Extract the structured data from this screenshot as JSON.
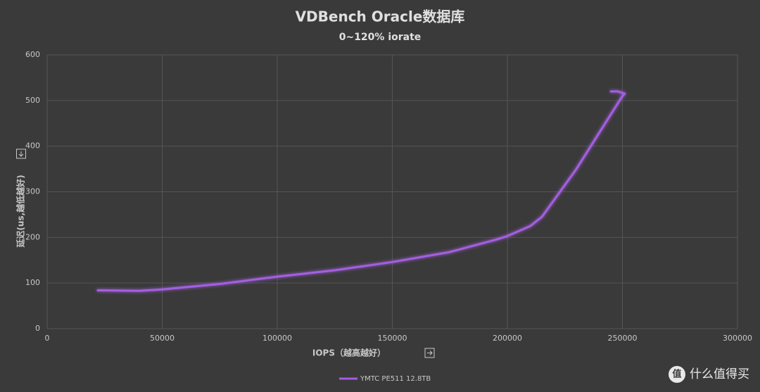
{
  "chart_data": {
    "type": "line",
    "title": "VDBench Oracle数据库",
    "subtitle": "0~120% iorate",
    "x_label": "IOPS（越高越好）",
    "y_label": "延迟(us,越低越好)",
    "x": [
      22000,
      40000,
      50000,
      75000,
      100000,
      125000,
      150000,
      175000,
      195000,
      200000,
      210000,
      215000,
      220000,
      230000,
      240000,
      250000,
      251000,
      248000,
      245000
    ],
    "series": [
      {
        "name": "YMTC PE511 12.8TB",
        "color": "#a45ee0",
        "values": [
          84,
          83,
          86,
          98,
          114,
          128,
          146,
          168,
          195,
          203,
          225,
          245,
          280,
          350,
          430,
          510,
          515,
          520,
          520
        ]
      }
    ],
    "xlim": [
      0,
      300000
    ],
    "xticks": [
      0,
      50000,
      100000,
      150000,
      200000,
      250000,
      300000
    ],
    "ylim": [
      0,
      600
    ],
    "yticks": [
      0,
      100,
      200,
      300,
      400,
      500,
      600
    ],
    "grid": true,
    "legend": "bottom"
  },
  "watermark": {
    "icon": "值",
    "text": "什么值得买"
  }
}
